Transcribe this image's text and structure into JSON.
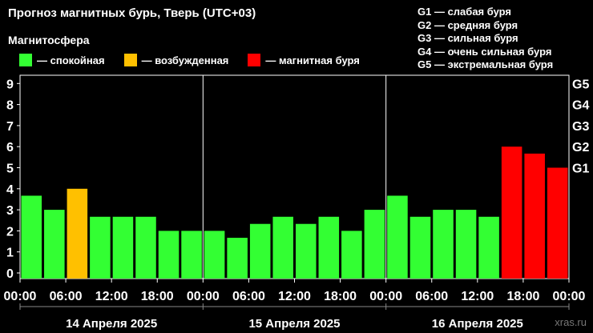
{
  "header": {
    "title": "Прогноз магнитных бурь, Тверь (UTC+03)",
    "subtitle": "Магнитосфера"
  },
  "legend": [
    {
      "label": "— спокойная",
      "color": "#33ff33"
    },
    {
      "label": "— возбужденная",
      "color": "#ffc000"
    },
    {
      "label": "— магнитная буря",
      "color": "#ff0000"
    }
  ],
  "g_legend": [
    "G1 — слабая буря",
    "G2 — средняя буря",
    "G3 — сильная буря",
    "G4 — очень сильная буря",
    "G5 — экстремальная буря"
  ],
  "watermark": "xras.ru",
  "chart_data": {
    "type": "bar",
    "ylim": [
      0,
      9
    ],
    "y_ticks": [
      "0",
      "1",
      "2",
      "3",
      "4",
      "5",
      "6",
      "7",
      "8",
      "9"
    ],
    "g_ticks": [
      {
        "label": "G1",
        "value": 5
      },
      {
        "label": "G2",
        "value": 6
      },
      {
        "label": "G3",
        "value": 7
      },
      {
        "label": "G4",
        "value": 8
      },
      {
        "label": "G5",
        "value": 9
      }
    ],
    "x_tick_labels": [
      "00:00",
      "06:00",
      "12:00",
      "18:00",
      "00:00",
      "06:00",
      "12:00",
      "18:00",
      "00:00",
      "06:00",
      "12:00",
      "18:00",
      "00:00"
    ],
    "days": [
      "14 Апреля 2025",
      "15 Апреля 2025",
      "16 Апреля 2025"
    ],
    "bars_per_day": 8,
    "values": [
      3.67,
      3.0,
      4.0,
      2.67,
      2.67,
      2.67,
      2.0,
      2.0,
      2.0,
      1.67,
      2.33,
      2.67,
      2.33,
      2.67,
      2.0,
      3.0,
      3.67,
      2.67,
      3.0,
      3.0,
      2.67,
      6.0,
      5.67,
      5.0
    ],
    "colors": [
      "#33ff33",
      "#33ff33",
      "#ffc000",
      "#33ff33",
      "#33ff33",
      "#33ff33",
      "#33ff33",
      "#33ff33",
      "#33ff33",
      "#33ff33",
      "#33ff33",
      "#33ff33",
      "#33ff33",
      "#33ff33",
      "#33ff33",
      "#33ff33",
      "#33ff33",
      "#33ff33",
      "#33ff33",
      "#33ff33",
      "#33ff33",
      "#ff0000",
      "#ff0000",
      "#ff0000"
    ]
  }
}
